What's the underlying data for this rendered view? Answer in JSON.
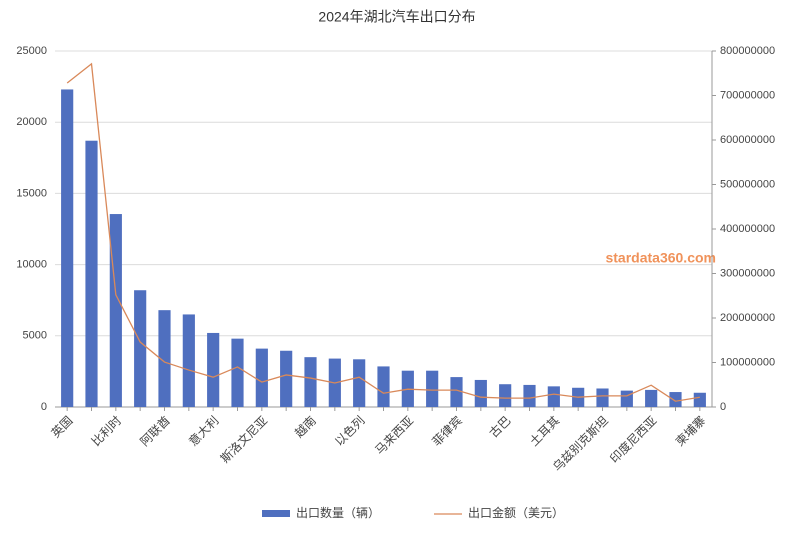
{
  "chart_data": {
    "type": "bar-line",
    "title": "2024年湖北汽车出口分布",
    "watermark": "stardata360.com",
    "categories": [
      "英国",
      null,
      "比利时",
      null,
      "阿联酋",
      null,
      "意大利",
      null,
      "斯洛文尼亚",
      null,
      "越南",
      null,
      "以色列",
      null,
      "马来西亚",
      null,
      "菲律宾",
      null,
      "古巴",
      null,
      "土耳其",
      null,
      "乌兹别克斯坦",
      null,
      "印度尼西亚",
      null,
      "柬埔寨"
    ],
    "series": [
      {
        "name": "出口数量（辆）",
        "type": "bar",
        "color": "#4f6fbf",
        "values": [
          22300,
          18700,
          13550,
          8200,
          6800,
          6500,
          5200,
          4800,
          4100,
          3950,
          3500,
          3400,
          3350,
          2850,
          2550,
          2550,
          2100,
          1900,
          1600,
          1550,
          1450,
          1350,
          1300,
          1150,
          1200,
          1050,
          1000
        ]
      },
      {
        "name": "出口金额（美元）",
        "type": "line",
        "axis": "y2",
        "color": "#d9895a",
        "values": [
          728000000,
          771000000,
          252000000,
          146000000,
          101000000,
          83000000,
          67000000,
          90000000,
          56000000,
          72000000,
          65000000,
          54000000,
          67000000,
          31000000,
          40000000,
          38000000,
          38000000,
          22000000,
          20000000,
          20000000,
          29000000,
          22000000,
          25000000,
          25000000,
          49000000,
          13000000,
          22000000
        ]
      }
    ],
    "ylim": [
      0,
      25000
    ],
    "yticks": [
      0,
      5000,
      10000,
      15000,
      20000,
      25000
    ],
    "y2lim": [
      0,
      800000000
    ],
    "y2ticks": [
      0,
      100000000,
      200000000,
      300000000,
      400000000,
      500000000,
      600000000,
      700000000,
      800000000
    ],
    "grid": true,
    "legend": "bottom"
  }
}
